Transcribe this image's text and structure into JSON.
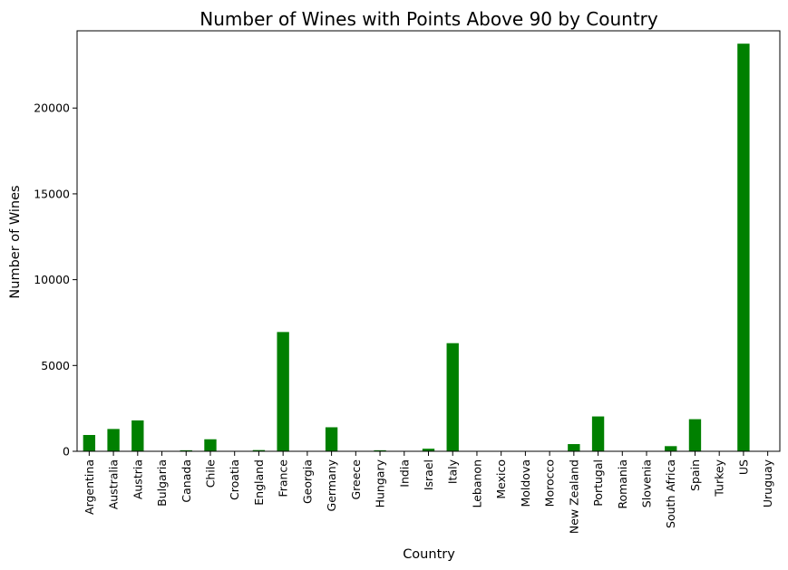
{
  "chart_data": {
    "type": "bar",
    "title": "Number of Wines with Points Above 90 by Country",
    "xlabel": "Country",
    "ylabel": "Number of Wines",
    "ylim": [
      0,
      24500
    ],
    "yticks": [
      0,
      5000,
      10000,
      15000,
      20000
    ],
    "grid": false,
    "bar_color": "#008000",
    "categories": [
      "Argentina",
      "Australia",
      "Austria",
      "Bulgaria",
      "Canada",
      "Chile",
      "Croatia",
      "England",
      "France",
      "Georgia",
      "Germany",
      "Greece",
      "Hungary",
      "India",
      "Israel",
      "Italy",
      "Lebanon",
      "Mexico",
      "Moldova",
      "Morocco",
      "New Zealand",
      "Portugal",
      "Romania",
      "Slovenia",
      "South Africa",
      "Spain",
      "Turkey",
      "US",
      "Uruguay"
    ],
    "values": [
      950,
      1300,
      1800,
      5,
      60,
      700,
      5,
      70,
      6950,
      5,
      1400,
      10,
      60,
      5,
      150,
      6300,
      5,
      5,
      5,
      5,
      420,
      2030,
      5,
      5,
      300,
      1870,
      5,
      23750,
      15
    ]
  }
}
